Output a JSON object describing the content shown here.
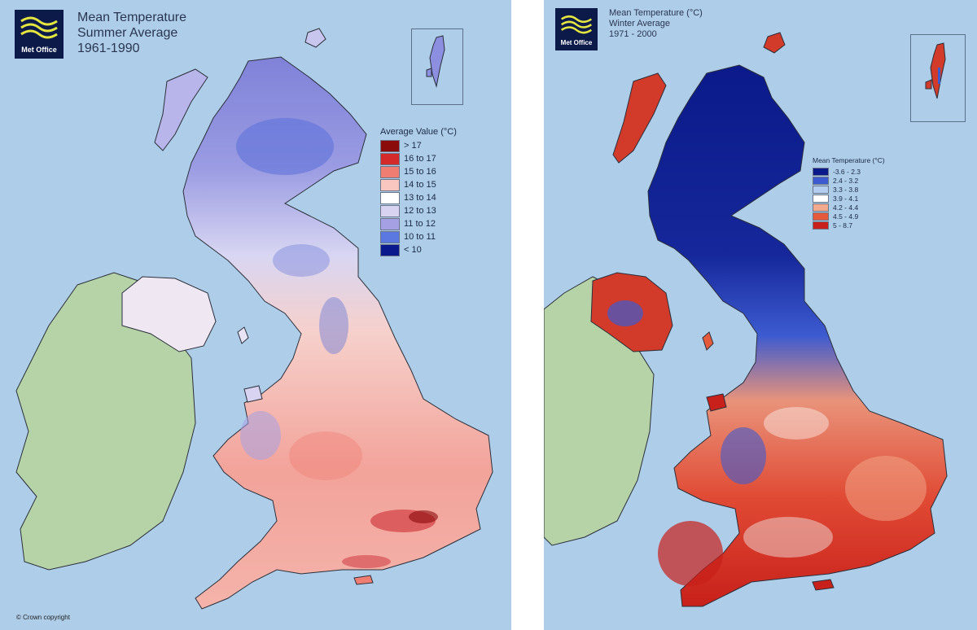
{
  "colors": {
    "sea": "#aecde9",
    "ireland": "#b5d3a7",
    "logo_bg": "#0c1a4a",
    "logo_waves": "#e6e640",
    "coast": "#2b2f3a"
  },
  "left_map": {
    "title_lines": [
      "Mean Temperature",
      "Summer Average",
      "1961-1990"
    ],
    "logo_text": "Met Office",
    "legend": {
      "title": "Average Value (°C)",
      "items": [
        {
          "label": "> 17",
          "color": "#8b0a0a"
        },
        {
          "label": "16 to 17",
          "color": "#d42a2a"
        },
        {
          "label": "15 to 16",
          "color": "#f07d72"
        },
        {
          "label": "14 to 15",
          "color": "#f9c7c0"
        },
        {
          "label": "13 to 14",
          "color": "#ffffff"
        },
        {
          "label": "12 to 13",
          "color": "#d7d3f0"
        },
        {
          "label": "11 to 12",
          "color": "#a5a0e3"
        },
        {
          "label": "10 to 11",
          "color": "#5a78e0"
        },
        {
          "label": "< 10",
          "color": "#0a1a8c"
        }
      ]
    },
    "copyright": "© Crown copyright"
  },
  "right_map": {
    "title_lines": [
      "Mean Temperature (°C)",
      "Winter Average",
      "1971 - 2000"
    ],
    "logo_text": "Met Office",
    "legend": {
      "title": "Mean Temperature (°C)",
      "items": [
        {
          "label": "-3.6 - 2.3",
          "color": "#0b1a8a"
        },
        {
          "label": "2.4 - 3.2",
          "color": "#3d5bd0"
        },
        {
          "label": "3.3 - 3.8",
          "color": "#b3cdf0"
        },
        {
          "label": "3.9 - 4.1",
          "color": "#ffffff"
        },
        {
          "label": "4.2 - 4.4",
          "color": "#f2a98c"
        },
        {
          "label": "4.5 - 4.9",
          "color": "#e65a3c"
        },
        {
          "label": "5 - 8.7",
          "color": "#c8201a"
        }
      ]
    }
  }
}
